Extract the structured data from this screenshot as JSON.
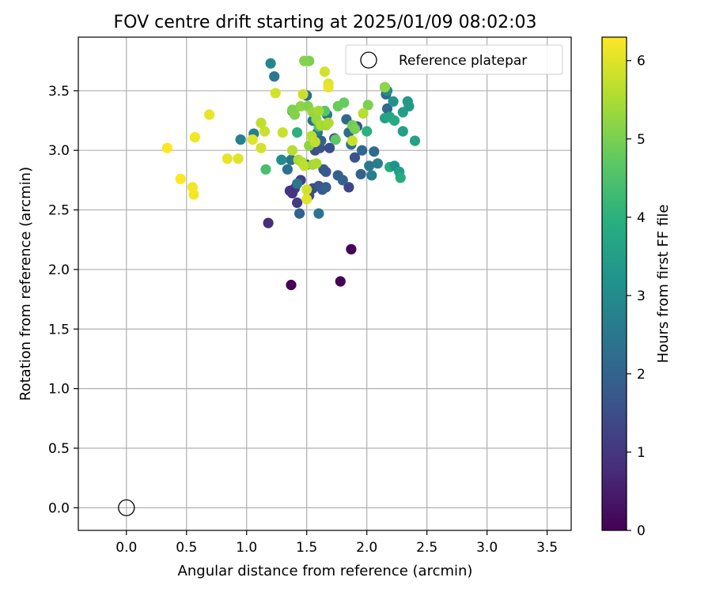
{
  "chart_data": {
    "type": "scatter",
    "title": "FOV centre drift starting at 2025/01/09 08:02:03",
    "xlabel": "Angular distance from reference (arcmin)",
    "ylabel": "Rotation from reference (arcmin)",
    "xlim": [
      -0.4,
      3.7
    ],
    "ylim": [
      -0.19,
      3.95
    ],
    "x_ticks": [
      0.0,
      0.5,
      1.0,
      1.5,
      2.0,
      2.5,
      3.0,
      3.5
    ],
    "y_ticks": [
      0.0,
      0.5,
      1.0,
      1.5,
      2.0,
      2.5,
      3.0,
      3.5
    ],
    "x_tick_labels": [
      "0.0",
      "0.5",
      "1.0",
      "1.5",
      "2.0",
      "2.5",
      "3.0",
      "3.5"
    ],
    "y_tick_labels": [
      "0.0",
      "0.5",
      "1.0",
      "1.5",
      "2.0",
      "2.5",
      "3.0",
      "3.5"
    ],
    "grid": true,
    "legend": {
      "position": "top-right",
      "entries": [
        "Reference platepar"
      ]
    },
    "reference_point": {
      "name": "Reference platepar",
      "x": 0.0,
      "y": 0.0
    },
    "colorbar": {
      "label": "Hours from first FF file",
      "colormap": "viridis",
      "range": [
        0,
        6.3
      ],
      "ticks": [
        0,
        1,
        2,
        3,
        4,
        5,
        6
      ],
      "tick_labels": [
        "0",
        "1",
        "2",
        "3",
        "4",
        "5",
        "6"
      ]
    },
    "series": [
      {
        "points": [
          [
            1.37,
            1.87,
            0.0
          ],
          [
            1.78,
            1.9,
            0.05
          ],
          [
            1.87,
            2.17,
            0.1
          ],
          [
            1.18,
            2.39,
            0.8
          ],
          [
            1.38,
            2.64,
            0.9
          ],
          [
            1.4,
            2.68,
            1.0
          ],
          [
            1.42,
            2.56,
            1.1
          ],
          [
            1.45,
            2.75,
            1.2
          ],
          [
            1.36,
            2.66,
            0.95
          ],
          [
            1.85,
            2.69,
            1.3
          ],
          [
            1.52,
            2.62,
            1.4
          ],
          [
            1.55,
            2.68,
            1.5
          ],
          [
            1.6,
            2.7,
            1.7
          ],
          [
            1.63,
            2.67,
            1.8
          ],
          [
            1.66,
            2.69,
            1.9
          ],
          [
            1.44,
            2.47,
            2.0
          ],
          [
            1.6,
            2.47,
            2.4
          ],
          [
            1.5,
            2.88,
            1.6
          ],
          [
            1.57,
            3.0,
            1.5
          ],
          [
            1.61,
            3.02,
            1.6
          ],
          [
            1.64,
            2.84,
            1.7
          ],
          [
            1.66,
            2.82,
            1.8
          ],
          [
            1.69,
            3.02,
            1.5
          ],
          [
            1.73,
            3.1,
            1.6
          ],
          [
            1.76,
            2.79,
            1.9
          ],
          [
            1.8,
            2.75,
            2.0
          ],
          [
            1.83,
            3.26,
            2.1
          ],
          [
            1.85,
            3.15,
            2.2
          ],
          [
            1.87,
            3.05,
            2.3
          ],
          [
            1.9,
            2.94,
            1.6
          ],
          [
            1.92,
            3.2,
            1.7
          ],
          [
            1.95,
            2.8,
            2.0
          ],
          [
            1.96,
            3.0,
            2.1
          ],
          [
            2.02,
            2.87,
            2.5
          ],
          [
            2.04,
            2.79,
            2.7
          ],
          [
            2.06,
            2.99,
            2.2
          ],
          [
            2.09,
            2.89,
            2.6
          ],
          [
            1.5,
            3.46,
            2.2
          ],
          [
            1.55,
            3.25,
            2.4
          ],
          [
            1.59,
            3.15,
            2.5
          ],
          [
            1.62,
            3.08,
            2.0
          ],
          [
            1.67,
            3.3,
            2.6
          ],
          [
            1.34,
            2.84,
            2.3
          ],
          [
            1.37,
            2.92,
            2.4
          ],
          [
            1.42,
            2.72,
            2.5
          ],
          [
            1.23,
            3.62,
            2.5
          ],
          [
            1.2,
            3.73,
            2.9
          ],
          [
            1.06,
            3.14,
            2.7
          ],
          [
            0.95,
            3.09,
            2.8
          ],
          [
            1.29,
            2.92,
            3.0
          ],
          [
            1.38,
            3.33,
            2.8
          ],
          [
            2.16,
            3.47,
            2.1
          ],
          [
            2.17,
            3.35,
            2.2
          ],
          [
            2.15,
            3.53,
            2.7
          ],
          [
            2.17,
            3.5,
            3.0
          ],
          [
            2.22,
            3.41,
            3.2
          ],
          [
            2.3,
            3.32,
            3.5
          ],
          [
            2.34,
            3.41,
            3.3
          ],
          [
            2.35,
            3.37,
            3.4
          ],
          [
            2.15,
            3.27,
            3.6
          ],
          [
            2.19,
            3.28,
            3.7
          ],
          [
            2.23,
            3.25,
            3.8
          ],
          [
            2.3,
            3.16,
            3.5
          ],
          [
            2.4,
            3.08,
            3.6
          ],
          [
            2.19,
            2.86,
            3.9
          ],
          [
            2.23,
            2.87,
            3.2
          ],
          [
            2.27,
            2.82,
            3.5
          ],
          [
            2.28,
            2.77,
            3.8
          ],
          [
            2.0,
            3.16,
            4.0
          ],
          [
            1.42,
            3.15,
            4.0
          ],
          [
            1.16,
            2.84,
            4.4
          ],
          [
            1.6,
            3.2,
            4.5
          ],
          [
            1.65,
            3.33,
            4.6
          ],
          [
            1.74,
            3.09,
            4.7
          ],
          [
            1.76,
            3.37,
            4.8
          ],
          [
            1.81,
            3.4,
            4.8
          ],
          [
            1.88,
            3.21,
            4.9
          ],
          [
            1.9,
            3.18,
            5.0
          ],
          [
            2.01,
            3.38,
            5.0
          ],
          [
            2.15,
            3.53,
            5.2
          ],
          [
            1.52,
            3.75,
            5.0
          ],
          [
            1.48,
            3.75,
            5.1
          ],
          [
            1.38,
            3.34,
            5.0
          ],
          [
            1.4,
            3.3,
            5.1
          ],
          [
            1.45,
            3.37,
            5.2
          ],
          [
            1.51,
            3.37,
            5.1
          ],
          [
            1.52,
            3.04,
            5.2
          ],
          [
            1.55,
            3.32,
            5.3
          ],
          [
            1.58,
            3.26,
            5.3
          ],
          [
            1.6,
            3.33,
            5.4
          ],
          [
            1.62,
            3.21,
            5.5
          ],
          [
            1.66,
            3.21,
            5.4
          ],
          [
            1.68,
            3.23,
            5.5
          ],
          [
            1.38,
            3.0,
            5.6
          ],
          [
            1.43,
            2.92,
            5.5
          ],
          [
            1.46,
            2.9,
            5.6
          ],
          [
            1.48,
            2.87,
            5.7
          ],
          [
            1.55,
            2.88,
            5.4
          ],
          [
            1.58,
            2.89,
            5.5
          ],
          [
            1.54,
            3.12,
            5.6
          ],
          [
            1.57,
            3.07,
            5.7
          ],
          [
            1.47,
            3.47,
            5.8
          ],
          [
            1.5,
            2.67,
            5.9
          ],
          [
            1.5,
            2.59,
            6.0
          ],
          [
            1.65,
            3.66,
            5.9
          ],
          [
            1.68,
            3.56,
            6.0
          ],
          [
            1.68,
            3.53,
            6.1
          ],
          [
            1.24,
            3.48,
            5.9
          ],
          [
            1.3,
            3.15,
            5.8
          ],
          [
            1.12,
            3.23,
            5.7
          ],
          [
            1.15,
            3.16,
            5.8
          ],
          [
            1.12,
            3.02,
            5.9
          ],
          [
            1.05,
            3.09,
            6.0
          ],
          [
            1.88,
            3.08,
            5.8
          ],
          [
            1.97,
            3.31,
            5.6
          ],
          [
            0.69,
            3.3,
            6.1
          ],
          [
            0.57,
            3.11,
            6.2
          ],
          [
            0.34,
            3.02,
            6.3
          ],
          [
            0.45,
            2.76,
            6.3
          ],
          [
            0.55,
            2.69,
            6.2
          ],
          [
            0.56,
            2.63,
            6.2
          ],
          [
            0.84,
            2.93,
            6.1
          ],
          [
            0.93,
            2.93,
            6.0
          ]
        ]
      }
    ]
  }
}
